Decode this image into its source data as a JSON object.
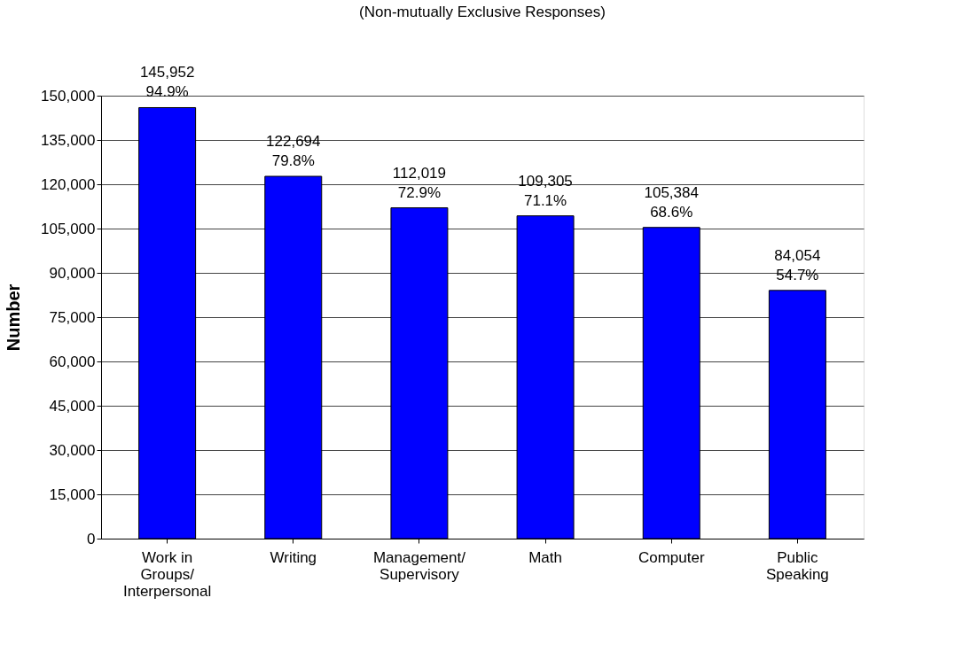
{
  "chart_data": {
    "type": "bar",
    "title": "(Non-mutually Exclusive Responses)",
    "ylabel": "Number",
    "categories": [
      "Work in\nGroups/\nInterpersonal",
      "Writing",
      "Management/\nSupervisory",
      "Math",
      "Computer",
      "Public\nSpeaking"
    ],
    "values": [
      145952,
      122694,
      112019,
      109305,
      105384,
      84054
    ],
    "color": "#0000ff",
    "value_labels": [
      "145,952\n94.9%",
      "122,694\n79.8%",
      "112,019\n72.9%",
      "109,305\n71.1%",
      "105,384\n68.6%",
      "84,054\n54.7%"
    ],
    "ylim": [
      0,
      150000
    ],
    "yticks": [
      {
        "value": 0,
        "label": "0"
      },
      {
        "value": 15000,
        "label": "15,000"
      },
      {
        "value": 30000,
        "label": "30,000"
      },
      {
        "value": 45000,
        "label": "45,000"
      },
      {
        "value": 60000,
        "label": "60,000"
      },
      {
        "value": 75000,
        "label": "75,000"
      },
      {
        "value": 90000,
        "label": "90,000"
      },
      {
        "value": 105000,
        "label": "105,000"
      },
      {
        "value": 120000,
        "label": "120,000"
      },
      {
        "value": 135000,
        "label": "135,000"
      },
      {
        "value": 150000,
        "label": "150,000"
      }
    ],
    "grid": "y"
  }
}
